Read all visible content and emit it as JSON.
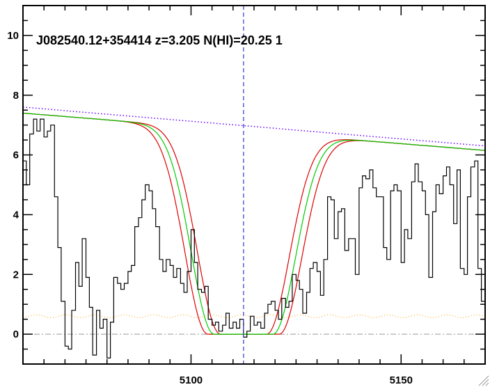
{
  "chart_data": {
    "type": "line",
    "title": "J082540.12+354414 z=3.205 N(HI)=20.25 1",
    "xlabel": "",
    "ylabel": "",
    "xlim": [
      5060,
      5170
    ],
    "ylim": [
      -1,
      11
    ],
    "x_ticks": [
      5100,
      5150
    ],
    "y_ticks": [
      0,
      2,
      4,
      6,
      8,
      10
    ],
    "grid": false,
    "legend": "none",
    "center_line_x": 5112.5,
    "zero_line_y": 0,
    "colors": {
      "flux": "#000000",
      "model": "#00cc00",
      "model_bounds": "#dd0000",
      "continuum": "#6600ff",
      "error": "#ff9900",
      "center_line": "#3333cc",
      "zero_line": "#999999"
    },
    "flux_steps": [
      [
        5060,
        5.8
      ],
      [
        5060.8,
        5.0
      ],
      [
        5061.6,
        6.7
      ],
      [
        5062.5,
        7.2
      ],
      [
        5063.3,
        6.8
      ],
      [
        5064.1,
        7.2
      ],
      [
        5065.0,
        6.6
      ],
      [
        5065.8,
        6.8
      ],
      [
        5066.6,
        7.0
      ],
      [
        5067.5,
        4.6
      ],
      [
        5068.3,
        2.9
      ],
      [
        5069.1,
        1.1
      ],
      [
        5070.0,
        -0.4
      ],
      [
        5070.8,
        -0.5
      ],
      [
        5071.6,
        0.8
      ],
      [
        5072.5,
        2.4
      ],
      [
        5073.3,
        1.6
      ],
      [
        5074.1,
        3.2
      ],
      [
        5075.0,
        1.9
      ],
      [
        5075.8,
        0.9
      ],
      [
        5076.6,
        -0.7
      ],
      [
        5077.5,
        0.8
      ],
      [
        5078.3,
        0.2
      ],
      [
        5079.1,
        0.5
      ],
      [
        5080.0,
        -0.8
      ],
      [
        5080.8,
        0.4
      ],
      [
        5081.6,
        1.9
      ],
      [
        5082.5,
        1.7
      ],
      [
        5083.3,
        1.5
      ],
      [
        5084.1,
        1.7
      ],
      [
        5085.0,
        2.1
      ],
      [
        5085.8,
        2.3
      ],
      [
        5086.6,
        3.6
      ],
      [
        5087.5,
        3.9
      ],
      [
        5088.3,
        4.5
      ],
      [
        5089.1,
        5.0
      ],
      [
        5090.0,
        4.8
      ],
      [
        5090.8,
        4.2
      ],
      [
        5091.6,
        3.6
      ],
      [
        5092.5,
        2.5
      ],
      [
        5093.3,
        2.1
      ],
      [
        5094.1,
        2.5
      ],
      [
        5095.0,
        2.3
      ],
      [
        5095.8,
        1.9
      ],
      [
        5096.6,
        2.2
      ],
      [
        5097.5,
        1.7
      ],
      [
        5098.3,
        1.4
      ],
      [
        5099.1,
        2.1
      ],
      [
        5100.0,
        3.5
      ],
      [
        5100.8,
        2.4
      ],
      [
        5101.6,
        1.5
      ],
      [
        5102.5,
        1.4
      ],
      [
        5103.3,
        1.6
      ],
      [
        5104.1,
        0.5
      ],
      [
        5105.0,
        0.3
      ],
      [
        5105.8,
        0.4
      ],
      [
        5106.6,
        0.1
      ],
      [
        5107.5,
        0.3
      ],
      [
        5108.3,
        0.7
      ],
      [
        5109.1,
        0.2
      ],
      [
        5110.0,
        0.4
      ],
      [
        5110.8,
        0.2
      ],
      [
        5111.6,
        0.5
      ],
      [
        5112.5,
        -0.1
      ],
      [
        5113.3,
        0.1
      ],
      [
        5114.1,
        0.6
      ],
      [
        5115.0,
        0.3
      ],
      [
        5115.8,
        0.4
      ],
      [
        5116.6,
        0.2
      ],
      [
        5117.5,
        0.7
      ],
      [
        5118.3,
        1.0
      ],
      [
        5119.1,
        1.1
      ],
      [
        5120.0,
        0.8
      ],
      [
        5120.8,
        0.5
      ],
      [
        5121.6,
        1.2
      ],
      [
        5122.5,
        0.9
      ],
      [
        5123.3,
        1.1
      ],
      [
        5124.1,
        2.0
      ],
      [
        5125.0,
        1.8
      ],
      [
        5125.8,
        1.5
      ],
      [
        5126.6,
        0.7
      ],
      [
        5127.5,
        1.4
      ],
      [
        5128.3,
        2.2
      ],
      [
        5129.1,
        2.4
      ],
      [
        5130.0,
        2.1
      ],
      [
        5130.8,
        1.3
      ],
      [
        5131.6,
        2.5
      ],
      [
        5132.5,
        4.6
      ],
      [
        5133.3,
        4.5
      ],
      [
        5134.1,
        3.2
      ],
      [
        5135.0,
        4.1
      ],
      [
        5135.8,
        4.2
      ],
      [
        5136.6,
        2.8
      ],
      [
        5137.5,
        3.2
      ],
      [
        5138.3,
        3.2
      ],
      [
        5139.1,
        2.0
      ],
      [
        5140.0,
        4.9
      ],
      [
        5140.8,
        5.3
      ],
      [
        5141.6,
        5.2
      ],
      [
        5142.5,
        5.5
      ],
      [
        5143.3,
        4.9
      ],
      [
        5144.1,
        4.6
      ],
      [
        5145.0,
        4.6
      ],
      [
        5145.8,
        2.9
      ],
      [
        5146.6,
        2.5
      ],
      [
        5147.5,
        4.8
      ],
      [
        5148.3,
        5.0
      ],
      [
        5149.1,
        4.8
      ],
      [
        5150.0,
        2.4
      ],
      [
        5150.8,
        3.5
      ],
      [
        5151.6,
        3.2
      ],
      [
        5152.5,
        5.1
      ],
      [
        5153.3,
        5.7
      ],
      [
        5154.1,
        5.1
      ],
      [
        5155.0,
        4.8
      ],
      [
        5155.8,
        4.0
      ],
      [
        5156.6,
        1.9
      ],
      [
        5157.5,
        4.1
      ],
      [
        5158.3,
        5.0
      ],
      [
        5159.1,
        4.7
      ],
      [
        5160.0,
        5.3
      ],
      [
        5160.8,
        5.6
      ],
      [
        5161.6,
        5.0
      ],
      [
        5162.5,
        3.7
      ],
      [
        5163.3,
        5.5
      ],
      [
        5164.1,
        2.2
      ],
      [
        5165.0,
        2.0
      ],
      [
        5165.8,
        4.6
      ],
      [
        5166.6,
        5.6
      ],
      [
        5167.5,
        5.8
      ],
      [
        5168.3,
        2.2
      ],
      [
        5169.1,
        1.1
      ]
    ],
    "model": {
      "center": 5112.5,
      "continuum_start": 7.4,
      "continuum_end": 6.15,
      "trough_half_width": 7.0,
      "damping_scale": 7.7,
      "upper_bound_offset": 1.5,
      "lower_bound_offset": -1.5
    },
    "continuum_line": {
      "start": 7.6,
      "end": 6.3
    },
    "error_level": 0.6
  }
}
